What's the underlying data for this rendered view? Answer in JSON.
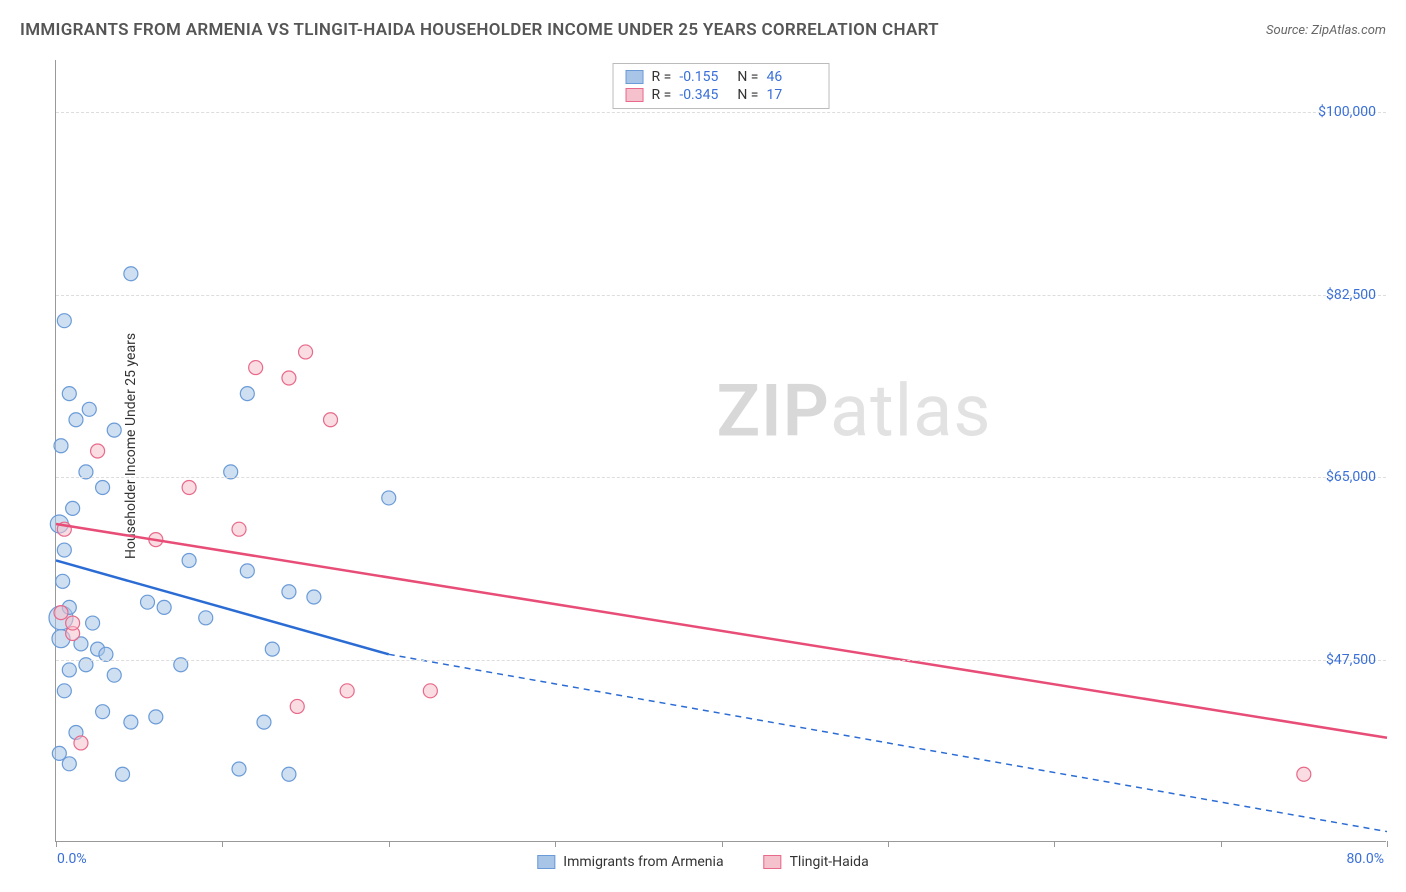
{
  "title": "IMMIGRANTS FROM ARMENIA VS TLINGIT-HAIDA HOUSEHOLDER INCOME UNDER 25 YEARS CORRELATION CHART",
  "source_label": "Source: ZipAtlas.com",
  "y_axis_label": "Householder Income Under 25 years",
  "watermark_bold": "ZIP",
  "watermark_light": "atlas",
  "chart": {
    "type": "scatter-with-regression",
    "x_min": 0.0,
    "x_max": 80.0,
    "y_min": 30000,
    "y_max": 105000,
    "x_tick_min_label": "0.0%",
    "x_tick_max_label": "80.0%",
    "x_tick_positions_pct": [
      0,
      12.5,
      25,
      37.5,
      50,
      62.5,
      75,
      87.5,
      100
    ],
    "y_ticks": [
      {
        "v": 47500,
        "label": "$47,500"
      },
      {
        "v": 65000,
        "label": "$65,000"
      },
      {
        "v": 82500,
        "label": "$82,500"
      },
      {
        "v": 100000,
        "label": "$100,000"
      }
    ],
    "grid_color": "#dddddd",
    "background_color": "#ffffff",
    "series": [
      {
        "name": "Immigrants from Armenia",
        "legend_label": "Immigrants from Armenia",
        "R": "-0.155",
        "N": "46",
        "fill": "#a8c5e8",
        "stroke": "#6a9bd8",
        "line_color": "#2b6cd4",
        "regression": {
          "x1": 0,
          "y1": 57000,
          "x2_solid": 20,
          "y2_solid": 48000,
          "x2": 80,
          "y2": 31000
        },
        "points": [
          {
            "x": 0.5,
            "y": 80000,
            "r": 7
          },
          {
            "x": 0.8,
            "y": 73000,
            "r": 7
          },
          {
            "x": 1.0,
            "y": 62000,
            "r": 7
          },
          {
            "x": 0.5,
            "y": 58000,
            "r": 7
          },
          {
            "x": 0.2,
            "y": 60500,
            "r": 9
          },
          {
            "x": 0.4,
            "y": 55000,
            "r": 7
          },
          {
            "x": 1.2,
            "y": 70500,
            "r": 7
          },
          {
            "x": 2.0,
            "y": 71500,
            "r": 7
          },
          {
            "x": 0.3,
            "y": 51500,
            "r": 12
          },
          {
            "x": 0.3,
            "y": 49500,
            "r": 9
          },
          {
            "x": 1.5,
            "y": 49000,
            "r": 7
          },
          {
            "x": 2.5,
            "y": 48500,
            "r": 7
          },
          {
            "x": 3.0,
            "y": 48000,
            "r": 7
          },
          {
            "x": 1.8,
            "y": 47000,
            "r": 7
          },
          {
            "x": 0.8,
            "y": 46500,
            "r": 7
          },
          {
            "x": 3.5,
            "y": 46000,
            "r": 7
          },
          {
            "x": 0.5,
            "y": 44500,
            "r": 7
          },
          {
            "x": 2.8,
            "y": 42500,
            "r": 7
          },
          {
            "x": 4.5,
            "y": 41500,
            "r": 7
          },
          {
            "x": 6.0,
            "y": 42000,
            "r": 7
          },
          {
            "x": 1.2,
            "y": 40500,
            "r": 7
          },
          {
            "x": 0.2,
            "y": 38500,
            "r": 7
          },
          {
            "x": 0.8,
            "y": 37500,
            "r": 7
          },
          {
            "x": 4.0,
            "y": 36500,
            "r": 7
          },
          {
            "x": 11.0,
            "y": 37000,
            "r": 7
          },
          {
            "x": 12.5,
            "y": 41500,
            "r": 7
          },
          {
            "x": 14.0,
            "y": 36500,
            "r": 7
          },
          {
            "x": 5.5,
            "y": 53000,
            "r": 7
          },
          {
            "x": 6.5,
            "y": 52500,
            "r": 7
          },
          {
            "x": 8.0,
            "y": 57000,
            "r": 7
          },
          {
            "x": 11.5,
            "y": 56000,
            "r": 7
          },
          {
            "x": 10.5,
            "y": 65500,
            "r": 7
          },
          {
            "x": 11.5,
            "y": 73000,
            "r": 7
          },
          {
            "x": 14.0,
            "y": 54000,
            "r": 7
          },
          {
            "x": 15.5,
            "y": 53500,
            "r": 7
          },
          {
            "x": 13.0,
            "y": 48500,
            "r": 7
          },
          {
            "x": 20.0,
            "y": 63000,
            "r": 7
          },
          {
            "x": 4.5,
            "y": 84500,
            "r": 7
          },
          {
            "x": 1.8,
            "y": 65500,
            "r": 7
          },
          {
            "x": 2.8,
            "y": 64000,
            "r": 7
          },
          {
            "x": 0.3,
            "y": 68000,
            "r": 7
          },
          {
            "x": 3.5,
            "y": 69500,
            "r": 7
          },
          {
            "x": 0.8,
            "y": 52500,
            "r": 7
          },
          {
            "x": 2.2,
            "y": 51000,
            "r": 7
          },
          {
            "x": 7.5,
            "y": 47000,
            "r": 7
          },
          {
            "x": 9.0,
            "y": 51500,
            "r": 7
          }
        ]
      },
      {
        "name": "Tlingit-Haida",
        "legend_label": "Tlingit-Haida",
        "R": "-0.345",
        "N": "17",
        "fill": "#f5c1cc",
        "stroke": "#e8698a",
        "line_color": "#e84d77",
        "regression": {
          "x1": 0,
          "y1": 60500,
          "x2_solid": 80,
          "y2_solid": 40000,
          "x2": 80,
          "y2": 40000
        },
        "points": [
          {
            "x": 2.5,
            "y": 67500,
            "r": 7
          },
          {
            "x": 8.0,
            "y": 64000,
            "r": 7
          },
          {
            "x": 11.0,
            "y": 60000,
            "r": 7
          },
          {
            "x": 15.0,
            "y": 77000,
            "r": 7
          },
          {
            "x": 16.5,
            "y": 70500,
            "r": 7
          },
          {
            "x": 14.0,
            "y": 74500,
            "r": 7
          },
          {
            "x": 12.0,
            "y": 75500,
            "r": 7
          },
          {
            "x": 17.5,
            "y": 44500,
            "r": 7
          },
          {
            "x": 22.5,
            "y": 44500,
            "r": 7
          },
          {
            "x": 1.0,
            "y": 50000,
            "r": 7
          },
          {
            "x": 1.0,
            "y": 51000,
            "r": 7
          },
          {
            "x": 0.5,
            "y": 60000,
            "r": 7
          },
          {
            "x": 1.5,
            "y": 39500,
            "r": 7
          },
          {
            "x": 14.5,
            "y": 43000,
            "r": 7
          },
          {
            "x": 75.0,
            "y": 36500,
            "r": 7
          },
          {
            "x": 6.0,
            "y": 59000,
            "r": 7
          },
          {
            "x": 0.3,
            "y": 52000,
            "r": 7
          }
        ]
      }
    ]
  },
  "colors": {
    "axis_text": "#3a6fd8",
    "title_text": "#555555"
  }
}
